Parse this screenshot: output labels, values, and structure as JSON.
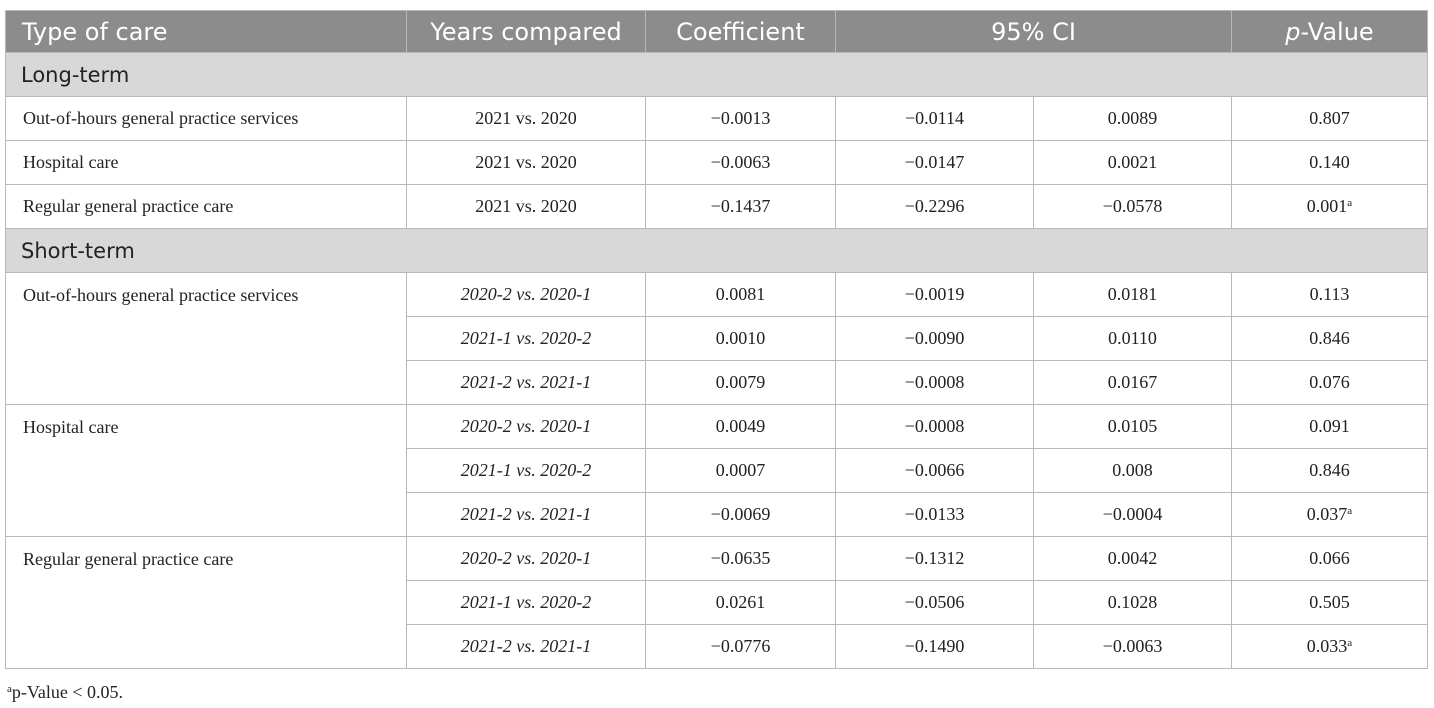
{
  "columns": {
    "type_of_care": "Type of care",
    "years_compared": "Years compared",
    "coefficient": "Coefficient",
    "ci": "95% CI",
    "p_prefix": "p",
    "p_suffix": "-Value"
  },
  "sections": {
    "long_term": "Long-term",
    "short_term": "Short-term"
  },
  "long_term": [
    {
      "care": "Out-of-hours general practice services",
      "years": "2021 vs. 2020",
      "coef": "−0.0013",
      "ci_low": "−0.0114",
      "ci_high": "0.0089",
      "p": "0.807",
      "mark": ""
    },
    {
      "care": "Hospital care",
      "years": "2021 vs. 2020",
      "coef": "−0.0063",
      "ci_low": "−0.0147",
      "ci_high": "0.0021",
      "p": "0.140",
      "mark": ""
    },
    {
      "care": "Regular general practice care",
      "years": "2021 vs. 2020",
      "coef": "−0.1437",
      "ci_low": "−0.2296",
      "ci_high": "−0.0578",
      "p": "0.001",
      "mark": "a"
    }
  ],
  "short_term": [
    {
      "care": "Out-of-hours general practice services",
      "rows": [
        {
          "years": "2020-2 vs. 2020-1",
          "coef": "0.0081",
          "ci_low": "−0.0019",
          "ci_high": "0.0181",
          "p": "0.113",
          "mark": ""
        },
        {
          "years": "2021-1 vs. 2020-2",
          "coef": "0.0010",
          "ci_low": "−0.0090",
          "ci_high": "0.0110",
          "p": "0.846",
          "mark": ""
        },
        {
          "years": "2021-2 vs. 2021-1",
          "coef": "0.0079",
          "ci_low": "−0.0008",
          "ci_high": "0.0167",
          "p": "0.076",
          "mark": ""
        }
      ]
    },
    {
      "care": "Hospital care",
      "rows": [
        {
          "years": "2020-2 vs. 2020-1",
          "coef": "0.0049",
          "ci_low": "−0.0008",
          "ci_high": "0.0105",
          "p": "0.091",
          "mark": ""
        },
        {
          "years": "2021-1 vs. 2020-2",
          "coef": "0.0007",
          "ci_low": "−0.0066",
          "ci_high": "0.008",
          "p": "0.846",
          "mark": ""
        },
        {
          "years": "2021-2 vs. 2021-1",
          "coef": "−0.0069",
          "ci_low": "−0.0133",
          "ci_high": "−0.0004",
          "p": "0.037",
          "mark": "a"
        }
      ]
    },
    {
      "care": "Regular general practice care",
      "rows": [
        {
          "years": "2020-2 vs. 2020-1",
          "coef": "−0.0635",
          "ci_low": "−0.1312",
          "ci_high": "0.0042",
          "p": "0.066",
          "mark": ""
        },
        {
          "years": "2021-1 vs. 2020-2",
          "coef": "0.0261",
          "ci_low": "−0.0506",
          "ci_high": "0.1028",
          "p": "0.505",
          "mark": ""
        },
        {
          "years": "2021-2 vs. 2021-1",
          "coef": "−0.0776",
          "ci_low": "−0.1490",
          "ci_high": "−0.0063",
          "p": "0.033",
          "mark": "a"
        }
      ]
    }
  ],
  "footnote": {
    "mark": "a",
    "text": "p-Value < 0.05."
  }
}
